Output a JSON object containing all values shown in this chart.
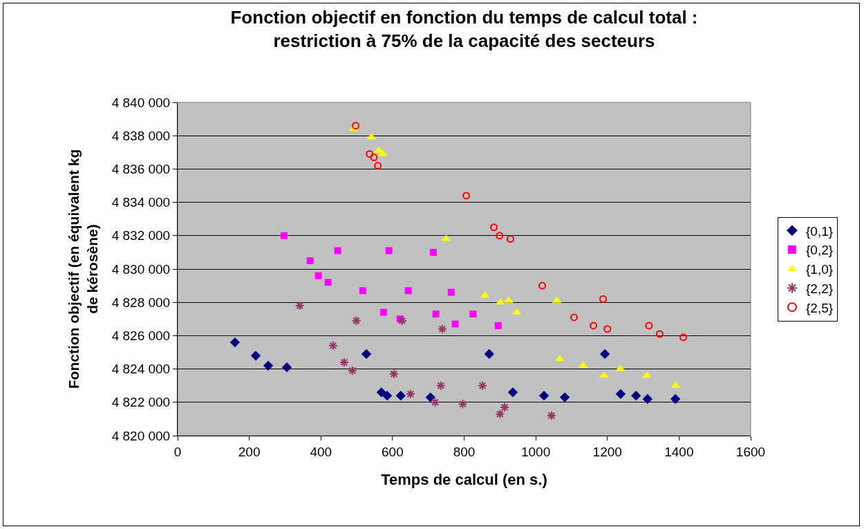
{
  "chart_data": {
    "type": "scatter",
    "title": "Fonction objectif en fonction du temps de calcul total :\nrestriction à 75% de la capacité des secteurs",
    "xlabel": "Temps de calcul (en s.)",
    "ylabel": "Fonction objectif (en équivalent kg\nde kérosène)",
    "xlim": [
      0,
      1600
    ],
    "xticks": [
      0,
      200,
      400,
      600,
      800,
      1000,
      1200,
      1400,
      1600
    ],
    "ylim": [
      4820000,
      4840000
    ],
    "yticks": [
      {
        "value": 4820000,
        "label": "4 820 000"
      },
      {
        "value": 4822000,
        "label": "4 822 000"
      },
      {
        "value": 4824000,
        "label": "4 824 000"
      },
      {
        "value": 4826000,
        "label": "4 826 000"
      },
      {
        "value": 4828000,
        "label": "4 828 000"
      },
      {
        "value": 4830000,
        "label": "4 830 000"
      },
      {
        "value": 4832000,
        "label": "4 832 000"
      },
      {
        "value": 4834000,
        "label": "4 834 000"
      },
      {
        "value": 4836000,
        "label": "4 836 000"
      },
      {
        "value": 4838000,
        "label": "4 838 000"
      },
      {
        "value": 4840000,
        "label": "4 840 000"
      }
    ],
    "grid": "y",
    "legend": "right",
    "series": [
      {
        "name": "{0,1}",
        "color": "#000080",
        "marker": "diamond",
        "x": [
          160,
          218,
          253,
          305,
          527,
          569,
          585,
          623,
          706,
          870,
          936,
          1023,
          1081,
          1193,
          1237,
          1280,
          1312,
          1390
        ],
        "values": [
          4825600,
          4824800,
          4824200,
          4824100,
          4824900,
          4822600,
          4822400,
          4822400,
          4822300,
          4824900,
          4822600,
          4822400,
          4822300,
          4824900,
          4822500,
          4822400,
          4822200,
          4822200
        ]
      },
      {
        "name": "{0,2}",
        "color": "#ff00ff",
        "marker": "square",
        "x": [
          297,
          447,
          590,
          714,
          370,
          393,
          420,
          517,
          644,
          764,
          575,
          621,
          721,
          775,
          825,
          895
        ],
        "values": [
          4832000,
          4831100,
          4831100,
          4831000,
          4830500,
          4829600,
          4829200,
          4828700,
          4828700,
          4828600,
          4827400,
          4827000,
          4827300,
          4826700,
          4827300,
          4826600
        ]
      },
      {
        "name": "{1,0}",
        "color": "#ffff00",
        "marker": "triangle",
        "x": [
          491,
          541,
          562,
          573,
          750,
          858,
          901,
          924,
          947,
          1059,
          1067,
          1132,
          1190,
          1236,
          1310,
          1391
        ],
        "values": [
          4838400,
          4837900,
          4837100,
          4836900,
          4831800,
          4828400,
          4828000,
          4828100,
          4827400,
          4828100,
          4824600,
          4824200,
          4823600,
          4824000,
          4823600,
          4823000
        ]
      },
      {
        "name": "{2,2}",
        "color": "#993366",
        "marker": "cross",
        "x": [
          341,
          499,
          627,
          739,
          434,
          465,
          488,
          604,
          735,
          650,
          719,
          796,
          851,
          900,
          913,
          1044
        ],
        "values": [
          4827800,
          4826900,
          4826900,
          4826400,
          4825400,
          4824400,
          4823900,
          4823700,
          4823000,
          4822500,
          4822000,
          4821900,
          4823000,
          4821300,
          4821700,
          4821200
        ]
      },
      {
        "name": "{2,5}",
        "color": "#ff0000",
        "marker": "circle",
        "x": [
          497,
          536,
          548,
          559,
          806,
          883,
          899,
          929,
          1018,
          1188,
          1107,
          1161,
          1200,
          1316,
          1346,
          1412
        ],
        "values": [
          4838600,
          4836900,
          4836700,
          4836200,
          4834400,
          4832500,
          4832000,
          4831800,
          4829000,
          4828200,
          4827100,
          4826600,
          4826400,
          4826600,
          4826100,
          4825900
        ]
      }
    ]
  }
}
